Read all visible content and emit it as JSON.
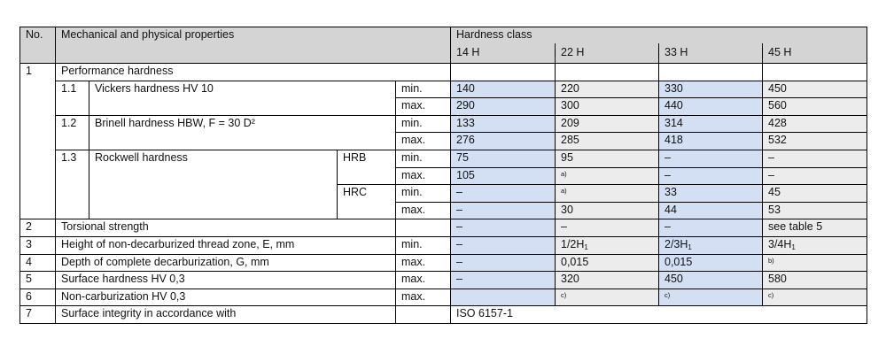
{
  "colors": {
    "header": "#d4d4d4",
    "column_blue": "#d3dff2",
    "column_gray": "#ececec"
  },
  "header": {
    "no": "No.",
    "properties": "Mechanical and physical properties",
    "hardness_class": "Hardness class",
    "classes": [
      "14 H",
      "22 H",
      "33 H",
      "45 H"
    ]
  },
  "rows": [
    {
      "no": "1",
      "name": "Performance hardness"
    },
    {
      "subno": "1.1",
      "name": "Vickers hardness HV 10",
      "limits": [
        {
          "q": "min.",
          "values": [
            {
              "t": "140"
            },
            {
              "t": "220"
            },
            {
              "t": "330"
            },
            {
              "t": "450"
            }
          ]
        },
        {
          "q": "max.",
          "values": [
            {
              "t": "290"
            },
            {
              "t": "300"
            },
            {
              "t": "440"
            },
            {
              "t": "560"
            }
          ]
        }
      ]
    },
    {
      "subno": "1.2",
      "name": "Brinell hardness HBW, F = 30 D²",
      "limits": [
        {
          "q": "min.",
          "values": [
            {
              "t": "133"
            },
            {
              "t": "209"
            },
            {
              "t": "314"
            },
            {
              "t": "428"
            }
          ]
        },
        {
          "q": "max.",
          "values": [
            {
              "t": "276"
            },
            {
              "t": "285"
            },
            {
              "t": "418"
            },
            {
              "t": "532"
            }
          ]
        }
      ]
    },
    {
      "subno": "1.3",
      "name": "Rockwell hardness",
      "scales": [
        {
          "scale": "HRB",
          "limits": [
            {
              "q": "min.",
              "values": [
                {
                  "t": "75"
                },
                {
                  "t": "95"
                },
                {
                  "t": "–"
                },
                {
                  "t": "–"
                }
              ]
            },
            {
              "q": "max.",
              "values": [
                {
                  "t": "105"
                },
                {
                  "note": "a)"
                },
                {
                  "t": "–"
                },
                {
                  "t": "–"
                }
              ]
            }
          ]
        },
        {
          "scale": "HRC",
          "limits": [
            {
              "q": "min.",
              "values": [
                {
                  "t": "–"
                },
                {
                  "note": "a)"
                },
                {
                  "t": "33"
                },
                {
                  "t": "45"
                }
              ]
            },
            {
              "q": "max.",
              "values": [
                {
                  "t": "–"
                },
                {
                  "t": "30"
                },
                {
                  "t": "44"
                },
                {
                  "t": "53"
                }
              ]
            }
          ]
        }
      ]
    },
    {
      "no": "2",
      "name": "Torsional strength",
      "q": "",
      "values": [
        {
          "t": "–"
        },
        {
          "t": "–"
        },
        {
          "t": "–"
        },
        {
          "t": "see table 5"
        }
      ]
    },
    {
      "no": "3",
      "name": "Height of non-decarburized thread zone, E, mm",
      "q": "min.",
      "values": [
        {
          "t": "–"
        },
        {
          "t": "1/2H",
          "sub": "1"
        },
        {
          "t": "2/3H",
          "sub": "1"
        },
        {
          "t": "3/4H",
          "sub": "1"
        }
      ]
    },
    {
      "no": "4",
      "name": "Depth of complete decarburization, G, mm",
      "q": "max.",
      "values": [
        {
          "t": "–"
        },
        {
          "t": "0,015"
        },
        {
          "t": "0,015"
        },
        {
          "note": "b)"
        }
      ]
    },
    {
      "no": "5",
      "name": "Surface hardness HV 0,3",
      "q": "max.",
      "values": [
        {
          "t": "–"
        },
        {
          "t": "320"
        },
        {
          "t": "450"
        },
        {
          "t": "580"
        }
      ]
    },
    {
      "no": "6",
      "name": "Non-carburization HV 0,3",
      "q": "max.",
      "values": [
        {
          "t": ""
        },
        {
          "note": "c)"
        },
        {
          "note": "c)"
        },
        {
          "note": "c)"
        }
      ]
    },
    {
      "no": "7",
      "name": "Surface integrity in accordance with",
      "q": "",
      "spanning_value": "ISO 6157-1"
    }
  ]
}
